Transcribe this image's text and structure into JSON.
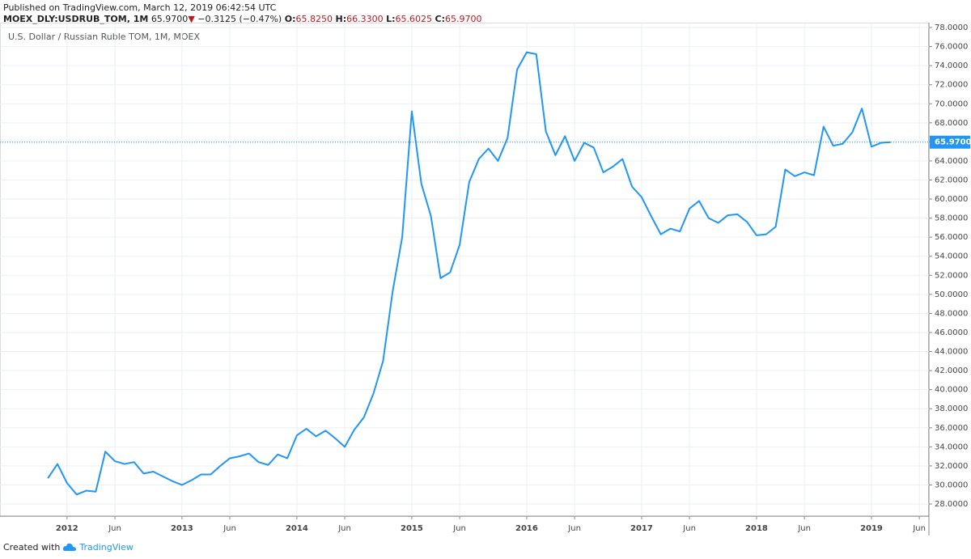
{
  "header": {
    "published": "Published on TradingView.com, March 12, 2019 06:42:54 UTC",
    "symbol": "MOEX_DLY:USDRUB_TOM, 1M",
    "last": "65.9700",
    "arrow": "▼",
    "change": "−0.3125 (−0.47%)",
    "open_label": "O:",
    "open": "65.8250",
    "high_label": "H:",
    "high": "66.3300",
    "low_label": "L:",
    "low": "65.6025",
    "close_label": "C:",
    "close": "65.9700"
  },
  "footer": {
    "created": "Created with",
    "brand": "TradingView"
  },
  "chart_data": {
    "type": "line",
    "title": "U.S. Dollar / Russian Ruble TOM, 1M, MOEX",
    "grid": true,
    "x": [
      "2011-11",
      "2011-12",
      "2012-01",
      "2012-02",
      "2012-03",
      "2012-04",
      "2012-05",
      "2012-06",
      "2012-07",
      "2012-08",
      "2012-09",
      "2012-10",
      "2012-11",
      "2012-12",
      "2013-01",
      "2013-02",
      "2013-03",
      "2013-04",
      "2013-05",
      "2013-06",
      "2013-07",
      "2013-08",
      "2013-09",
      "2013-10",
      "2013-11",
      "2013-12",
      "2014-01",
      "2014-02",
      "2014-03",
      "2014-04",
      "2014-05",
      "2014-06",
      "2014-07",
      "2014-08",
      "2014-09",
      "2014-10",
      "2014-11",
      "2014-12",
      "2015-01",
      "2015-02",
      "2015-03",
      "2015-04",
      "2015-05",
      "2015-06",
      "2015-07",
      "2015-08",
      "2015-09",
      "2015-10",
      "2015-11",
      "2015-12",
      "2016-01",
      "2016-02",
      "2016-03",
      "2016-04",
      "2016-05",
      "2016-06",
      "2016-07",
      "2016-08",
      "2016-09",
      "2016-10",
      "2016-11",
      "2016-12",
      "2017-01",
      "2017-02",
      "2017-03",
      "2017-04",
      "2017-05",
      "2017-06",
      "2017-07",
      "2017-08",
      "2017-09",
      "2017-10",
      "2017-11",
      "2017-12",
      "2018-01",
      "2018-02",
      "2018-03",
      "2018-04",
      "2018-05",
      "2018-06",
      "2018-07",
      "2018-08",
      "2018-09",
      "2018-10",
      "2018-11",
      "2018-12",
      "2019-01",
      "2019-02",
      "2019-03"
    ],
    "series": [
      {
        "name": "USDRUB_TOM",
        "color": "#2196f3",
        "values": [
          30.7,
          32.2,
          30.2,
          29.0,
          29.4,
          29.3,
          33.5,
          32.5,
          32.2,
          32.4,
          31.2,
          31.4,
          30.9,
          30.4,
          30.0,
          30.5,
          31.1,
          31.1,
          32.0,
          32.8,
          33.0,
          33.3,
          32.4,
          32.1,
          33.2,
          32.8,
          35.2,
          35.9,
          35.1,
          35.7,
          34.9,
          34.0,
          35.8,
          37.1,
          39.6,
          43.0,
          50.3,
          56.0,
          69.2,
          61.6,
          58.2,
          51.7,
          52.3,
          55.2,
          61.8,
          64.2,
          65.3,
          64.0,
          66.4,
          73.6,
          75.4,
          75.2,
          67.1,
          64.6,
          66.6,
          64.0,
          65.9,
          65.4,
          62.8,
          63.4,
          64.2,
          61.3,
          60.2,
          58.2,
          56.3,
          56.9,
          56.6,
          59.0,
          59.8,
          58.0,
          57.5,
          58.3,
          58.4,
          57.6,
          56.2,
          56.3,
          57.1,
          63.1,
          62.4,
          62.8,
          62.5,
          67.6,
          65.6,
          65.8,
          67.0,
          69.5,
          65.5,
          65.9,
          65.97
        ]
      }
    ],
    "last_price": {
      "value": 65.97,
      "label": "65.9700"
    },
    "xlim": [
      "2011-06",
      "2019-07"
    ],
    "xticks": [
      {
        "value": "2012-01",
        "label": "2012"
      },
      {
        "value": "2012-06",
        "label": "Jun"
      },
      {
        "value": "2013-01",
        "label": "2013"
      },
      {
        "value": "2013-06",
        "label": "Jun"
      },
      {
        "value": "2014-01",
        "label": "2014"
      },
      {
        "value": "2014-06",
        "label": "Jun"
      },
      {
        "value": "2015-01",
        "label": "2015"
      },
      {
        "value": "2015-06",
        "label": "Jun"
      },
      {
        "value": "2016-01",
        "label": "2016"
      },
      {
        "value": "2016-06",
        "label": "Jun"
      },
      {
        "value": "2017-01",
        "label": "2017"
      },
      {
        "value": "2017-06",
        "label": "Jun"
      },
      {
        "value": "2018-01",
        "label": "2018"
      },
      {
        "value": "2018-06",
        "label": "Jun"
      },
      {
        "value": "2019-01",
        "label": "2019"
      },
      {
        "value": "2019-06",
        "label": "Jun"
      }
    ],
    "ylim": [
      26.73,
      78.51
    ],
    "yticks": [
      {
        "value": 28,
        "label": "28.0000"
      },
      {
        "value": 30,
        "label": "30.0000"
      },
      {
        "value": 32,
        "label": "32.0000"
      },
      {
        "value": 34,
        "label": "34.0000"
      },
      {
        "value": 36,
        "label": "36.0000"
      },
      {
        "value": 38,
        "label": "38.0000"
      },
      {
        "value": 40,
        "label": "40.0000"
      },
      {
        "value": 42,
        "label": "42.0000"
      },
      {
        "value": 44,
        "label": "44.0000"
      },
      {
        "value": 46,
        "label": "46.0000"
      },
      {
        "value": 48,
        "label": "48.0000"
      },
      {
        "value": 50,
        "label": "50.0000"
      },
      {
        "value": 52,
        "label": "52.0000"
      },
      {
        "value": 54,
        "label": "54.0000"
      },
      {
        "value": 56,
        "label": "56.0000"
      },
      {
        "value": 58,
        "label": "58.0000"
      },
      {
        "value": 60,
        "label": "60.0000"
      },
      {
        "value": 62,
        "label": "62.0000"
      },
      {
        "value": 64,
        "label": "64.0000"
      },
      {
        "value": 66,
        "label": "66.0000"
      },
      {
        "value": 68,
        "label": "68.0000"
      },
      {
        "value": 70,
        "label": "70.0000"
      },
      {
        "value": 72,
        "label": "72.0000"
      },
      {
        "value": 74,
        "label": "74.0000"
      },
      {
        "value": 76,
        "label": "76.0000"
      },
      {
        "value": 78,
        "label": "78.0000"
      }
    ]
  }
}
